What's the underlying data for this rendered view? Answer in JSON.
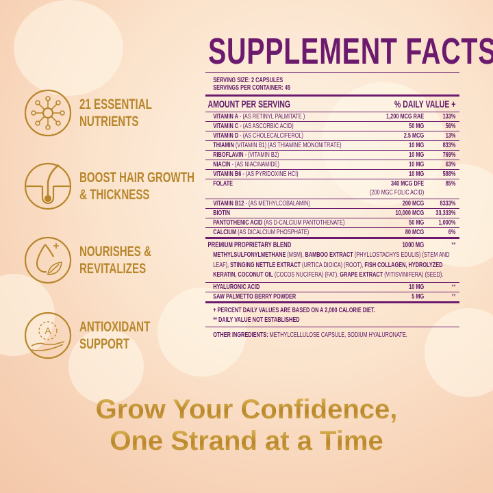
{
  "title": "SUPPLEMENT FACTS",
  "serving": {
    "size": "SERVING SIZE: 2 CAPSULES",
    "per_container": "SERVINGS PER CONTAINER: 45"
  },
  "header": {
    "amount": "AMOUNT PER SERVING",
    "daily_value": "% DAILY VALUE +"
  },
  "nutrients": [
    {
      "name": "VITAMIN A",
      "detail": " - (AS RETINYL PALMITATE )",
      "amount": "1,200 MCG RAE",
      "dv": "133%"
    },
    {
      "name": "VITAMIN C",
      "detail": " - (AS ASCORBIC ACID)",
      "amount": "50 MG",
      "dv": "56%"
    },
    {
      "name": "VITAMIN D",
      "detail": " - (AS CHOLECALCIFEROL)",
      "amount": "2.5 MCG",
      "dv": "13%"
    },
    {
      "name": "THIAMIN",
      "detail": " (VITAMIN B1) (AS THIAMINE MONONITRATE)",
      "amount": "10 MG",
      "dv": "833%"
    },
    {
      "name": "RIBOFLAVIN",
      "detail": " - (VITAMIN B2)",
      "amount": "10 MG",
      "dv": "769%"
    },
    {
      "name": "NIACIN",
      "detail": " - (AS NIACINAMIDE)",
      "amount": "10 MG",
      "dv": "63%"
    },
    {
      "name": "VITAMIN B6",
      "detail": " - (AS PYRIDOXINE HCI)",
      "amount": "10 MG",
      "dv": "588%"
    },
    {
      "name": "FOLATE",
      "detail": "",
      "amount": "340 MCG DFE",
      "amount2": "(200 MGC FOLIC ACID)",
      "dv": "85%"
    },
    {
      "name": "VITAMIN B12",
      "detail": " - (AS METHYLCOBALAMIN)",
      "amount": "200 MCG",
      "dv": "8333%"
    },
    {
      "name": "BIOTIN",
      "detail": "",
      "amount": "10,000 MCG",
      "dv": "33,333%"
    },
    {
      "name": "PANTOTHENIC ACID",
      "detail": " (AS D-CALCIUM PANTOTHENATE)",
      "amount": "50 MG",
      "dv": "1,000%"
    },
    {
      "name": "CALCIUM",
      "detail": " (AS DICALCIUM PHOSPHATE)",
      "amount": "80 MCG",
      "dv": "6%"
    }
  ],
  "blend": {
    "name": "PREMIUM PROPRIETARY BLEND",
    "amount": "1000 MG",
    "dv": "**",
    "parts": [
      {
        "b": "METHYLSULFONYLMETHANE",
        "t": " (MSM), "
      },
      {
        "b": "BAMBOO EXTRACT",
        "t": " (PHYLLOSTACHYS EDULIS) (STEM AND LEAF), "
      },
      {
        "b": "STINGING NETTLE EXTRACT",
        "t": " (URTICA DIOICA) (ROOT), "
      },
      {
        "b": "FISH COLLAGEN, HYDROLYZED KERATIN, COCONUT OIL",
        "t": " (COCOS NUCIFERA) (FAT), "
      },
      {
        "b": "GRAPE EXTRACT",
        "t": " (VITISVINIFERA) (SEED)."
      }
    ]
  },
  "extras": [
    {
      "name": "HYALURONIC ACID",
      "amount": "10 MG",
      "dv": "**"
    },
    {
      "name": "SAW PALMETTO BERRY POWDER",
      "amount": "5 MG",
      "dv": "**"
    }
  ],
  "footnotes": [
    "+ PERCENT DAILY VALUES ARE BASED ON A 2,000 CALORIE DIET.",
    "** DAILY VALUE NOT ESTABLISHED"
  ],
  "other": {
    "label": "OTHER INGREDIENTS:",
    "value": " METHYLCELLULOSE CAPSULE, SODIUM HYALURONATE."
  },
  "features": [
    {
      "icon": "molecule-icon",
      "line1": "21 ESSENTIAL",
      "line2": "NUTRIENTS"
    },
    {
      "icon": "hair-follicle-icon",
      "line1": "BOOST HAIR GROWTH",
      "line2": "& THICKNESS"
    },
    {
      "icon": "drop-leaf-icon",
      "line1": "NOURISHES &",
      "line2": "REVITALIZES"
    },
    {
      "icon": "antioxidant-hand-icon",
      "line1": "ANTIOXIDANT",
      "line2": "SUPPORT"
    }
  ],
  "tagline": {
    "line1": "Grow Your Confidence,",
    "line2": "One Strand at a Time"
  },
  "colors": {
    "purple": "#6b1a6e",
    "gold": "#b7862b"
  }
}
